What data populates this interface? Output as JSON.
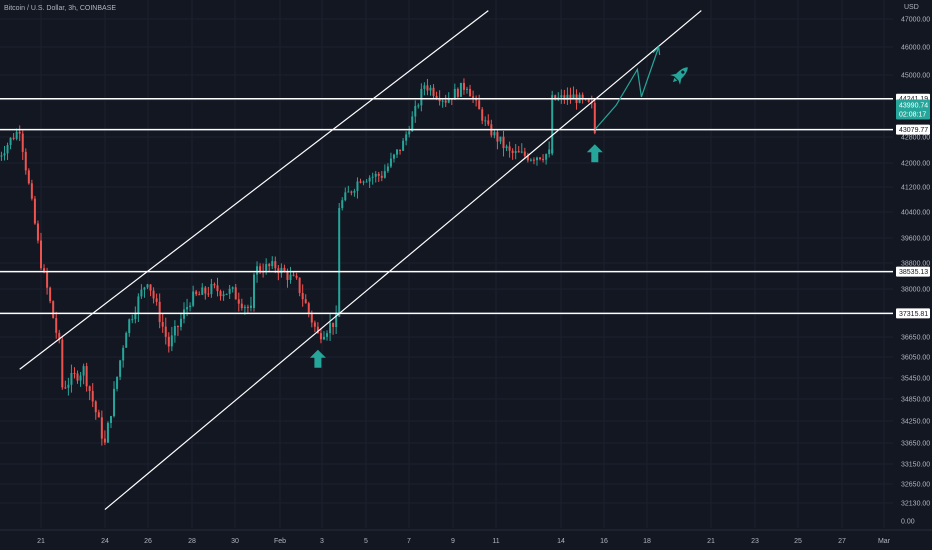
{
  "header": {
    "symbol_title": "Bitcoin / U.S. Dollar, 3h, COINBASE"
  },
  "price_axis": {
    "currency": "USD"
  },
  "price_readout": {
    "last_price": "43990.74",
    "countdown": "02:08:17"
  },
  "colors": {
    "background": "#131722",
    "up": "#26a69a",
    "down": "#ef5350",
    "levels": "#ffffff",
    "channel": "#ffffff",
    "arrows": "#26a69a",
    "axis_text": "#b2b5be",
    "grid": "#1c2030"
  },
  "icons": [
    "arrow-up-icon",
    "arrow-up-icon",
    "rocket-icon"
  ],
  "chart_data": {
    "type": "candlestick",
    "x_axis_type": "date",
    "x_tick_labels": [
      "21",
      "24",
      "26",
      "28",
      "30",
      "Feb",
      "3",
      "5",
      "7",
      "9",
      "11",
      "14",
      "16",
      "18",
      "21",
      "23",
      "25",
      "27",
      "Mar"
    ],
    "y_tick_labels": [
      "47000.00",
      "46000.00",
      "45000.00",
      "44200.00",
      "42800.00",
      "42000.00",
      "41200.00",
      "40400.00",
      "39600.00",
      "38800.00",
      "38000.00",
      "36650.00",
      "36050.00",
      "35450.00",
      "34850.00",
      "34250.00",
      "33650.00",
      "33150.00",
      "32650.00",
      "32130.00",
      "0.00"
    ],
    "ylim_approx": [
      31800,
      47400
    ],
    "horizontal_levels": [
      {
        "label": "44241.19",
        "value": 44241.19
      },
      {
        "label": "43079.77",
        "value": 43079.77
      },
      {
        "label": "38535.13",
        "value": 38535.13
      },
      {
        "label": "37315.81",
        "value": 37315.81
      }
    ],
    "channel": {
      "lower_line": [
        {
          "date": "2022-01-24",
          "price": 31950
        },
        {
          "date": "2022-02-21",
          "price": 47300
        }
      ],
      "upper_line": [
        {
          "date": "2022-01-20",
          "price": 35700
        },
        {
          "date": "2022-02-11",
          "price": 47300
        }
      ]
    },
    "projection_path": [
      {
        "date": "2022-02-16",
        "price": 43079
      },
      {
        "date": "2022-02-17",
        "price": 44000
      },
      {
        "date": "2022-02-18",
        "price": 45200
      },
      {
        "date": "2022-02-18",
        "price": 44300
      },
      {
        "date": "2022-02-19",
        "price": 46000
      }
    ],
    "annotations": [
      {
        "icon": "arrow-up-icon",
        "date": "2022-02-03",
        "price": 36000
      },
      {
        "icon": "arrow-up-icon",
        "date": "2022-02-16",
        "price": 42300
      },
      {
        "icon": "rocket-icon",
        "date": "2022-02-20",
        "price": 45000
      }
    ],
    "anchors": [
      {
        "date": "2022-01-19",
        "price": 42200
      },
      {
        "date": "2022-01-20",
        "price": 43100
      },
      {
        "date": "2022-01-21",
        "price": 38800
      },
      {
        "date": "2022-01-22",
        "price": 36000
      },
      {
        "date": "2022-01-22",
        "price": 35200
      },
      {
        "date": "2022-01-23",
        "price": 35700
      },
      {
        "date": "2022-01-24",
        "price": 33600
      },
      {
        "date": "2022-01-25",
        "price": 36900
      },
      {
        "date": "2022-01-26",
        "price": 38300
      },
      {
        "date": "2022-01-27",
        "price": 36400
      },
      {
        "date": "2022-01-28",
        "price": 37700
      },
      {
        "date": "2022-01-29",
        "price": 38000
      },
      {
        "date": "2022-01-30",
        "price": 37900
      },
      {
        "date": "2022-01-31",
        "price": 37300
      },
      {
        "date": "2022-01-31",
        "price": 38600
      },
      {
        "date": "2022-02-01",
        "price": 38700
      },
      {
        "date": "2022-02-02",
        "price": 38200
      },
      {
        "date": "2022-02-03",
        "price": 36700
      },
      {
        "date": "2022-02-04",
        "price": 37200
      },
      {
        "date": "2022-02-04",
        "price": 40600
      },
      {
        "date": "2022-02-05",
        "price": 41500
      },
      {
        "date": "2022-02-06",
        "price": 41600
      },
      {
        "date": "2022-02-07",
        "price": 42600
      },
      {
        "date": "2022-02-08",
        "price": 44700
      },
      {
        "date": "2022-02-09",
        "price": 44200
      },
      {
        "date": "2022-02-10",
        "price": 44700
      },
      {
        "date": "2022-02-11",
        "price": 43100
      },
      {
        "date": "2022-02-12",
        "price": 42300
      },
      {
        "date": "2022-02-13",
        "price": 42200
      },
      {
        "date": "2022-02-14",
        "price": 42300
      },
      {
        "date": "2022-02-14",
        "price": 44200
      },
      {
        "date": "2022-02-15",
        "price": 44300
      },
      {
        "date": "2022-02-16",
        "price": 43900
      },
      {
        "date": "2022-02-16",
        "price": 43100
      }
    ]
  }
}
